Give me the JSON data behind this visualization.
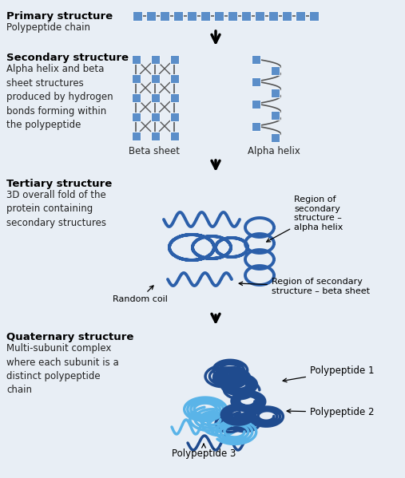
{
  "bg_color": "#e8eef5",
  "blue_square": "#5b8ec9",
  "dark_blue": "#1f4b8e",
  "medium_blue": "#2b5faa",
  "light_blue": "#5ab4e8",
  "title_color": "#000000",
  "text_color": "#222222",
  "primary_title": "Primary structure",
  "primary_sub": "Polypeptide chain",
  "secondary_title": "Secondary structure",
  "secondary_sub": "Alpha helix and beta\nsheet structures\nproduced by hydrogen\nbonds forming within\nthe polypeptide",
  "tertiary_title": "Tertiary structure",
  "tertiary_sub": "3D overall fold of the\nprotein containing\nsecondary structures",
  "quaternary_title": "Quaternary structure",
  "quaternary_sub": "Multi-subunit complex\nwhere each subunit is a\ndistinct polypeptide\nchain",
  "beta_sheet_label": "Beta sheet",
  "alpha_helix_label": "Alpha helix",
  "random_coil_label": "Random coil",
  "region_alpha_label": "Region of\nsecondary\nstructure –\nalpha helix",
  "region_beta_label": "Region of secondary\nstructure – beta sheet",
  "polypeptide1_label": "Polypeptide 1",
  "polypeptide2_label": "Polypeptide 2",
  "polypeptide3_label": "Polypeptide 3"
}
